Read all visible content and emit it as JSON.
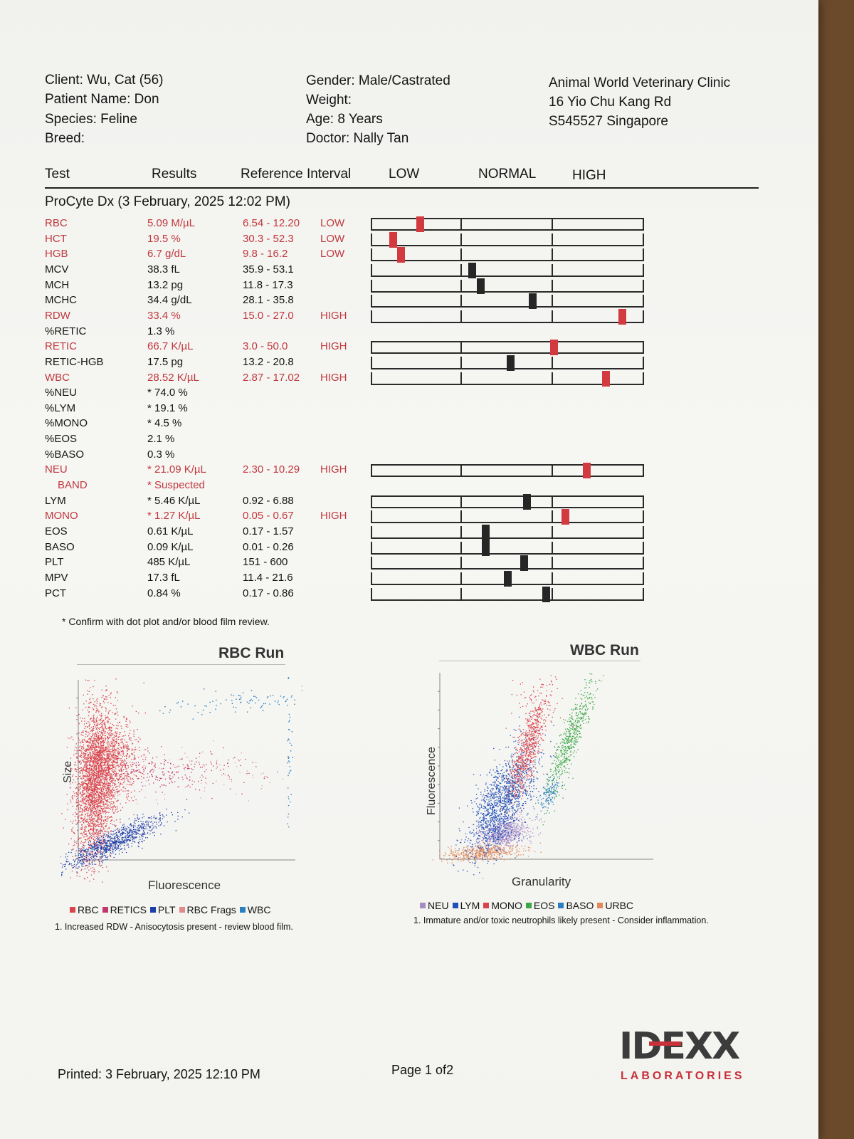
{
  "header": {
    "client": "Client: Wu, Cat (56)",
    "patient": "Patient Name: Don",
    "species": "Species: Feline",
    "breed": "Breed:",
    "gender": "Gender: Male/Castrated",
    "weight": "Weight:",
    "age": "Age: 8 Years",
    "doctor": "Doctor: Nally Tan",
    "clinic_name": "Animal World Veterinary Clinic",
    "clinic_address": "16 Yio Chu Kang Rd",
    "clinic_city": "S545527 Singapore"
  },
  "columns": {
    "test": "Test",
    "results": "Results",
    "reference": "Reference Interval",
    "low": "LOW",
    "normal": "NORMAL",
    "high": "HIGH"
  },
  "section_title": "ProCyte Dx (3 February, 2025 12:02 PM)",
  "rows": [
    {
      "test": "RBC",
      "result": "5.09 M/µL",
      "ref": "6.54 - 12.20",
      "flag": "LOW",
      "abnormal": true,
      "gauge": 0.18
    },
    {
      "test": "HCT",
      "result": "19.5 %",
      "ref": "30.3 - 52.3",
      "flag": "LOW",
      "abnormal": true,
      "gauge": 0.08
    },
    {
      "test": "HGB",
      "result": "6.7 g/dL",
      "ref": "9.8 - 16.2",
      "flag": "LOW",
      "abnormal": true,
      "gauge": 0.11
    },
    {
      "test": "MCV",
      "result": "38.3 fL",
      "ref": "35.9 - 53.1",
      "flag": "",
      "abnormal": false,
      "gauge": 0.37
    },
    {
      "test": "MCH",
      "result": "13.2 pg",
      "ref": "11.8 - 17.3",
      "flag": "",
      "abnormal": false,
      "gauge": 0.4
    },
    {
      "test": "MCHC",
      "result": "34.4 g/dL",
      "ref": "28.1 - 35.8",
      "flag": "",
      "abnormal": false,
      "gauge": 0.59
    },
    {
      "test": "RDW",
      "result": "33.4 %",
      "ref": "15.0 - 27.0",
      "flag": "HIGH",
      "abnormal": true,
      "gauge": 0.92
    },
    {
      "test": "%RETIC",
      "result": "1.3 %",
      "ref": "",
      "flag": "",
      "abnormal": false,
      "gauge": null
    },
    {
      "test": "RETIC",
      "result": "66.7 K/µL",
      "ref": "3.0 - 50.0",
      "flag": "HIGH",
      "abnormal": true,
      "gauge": 0.67
    },
    {
      "test": "RETIC-HGB",
      "result": "17.5 pg",
      "ref": "13.2 - 20.8",
      "flag": "",
      "abnormal": false,
      "gauge": 0.51
    },
    {
      "test": "WBC",
      "result": "28.52 K/µL",
      "ref": "2.87 - 17.02",
      "flag": "HIGH",
      "abnormal": true,
      "gauge": 0.86
    },
    {
      "test": "%NEU",
      "result": "* 74.0 %",
      "ref": "",
      "flag": "",
      "abnormal": false,
      "gauge": null
    },
    {
      "test": "%LYM",
      "result": "* 19.1 %",
      "ref": "",
      "flag": "",
      "abnormal": false,
      "gauge": null
    },
    {
      "test": "%MONO",
      "result": "* 4.5 %",
      "ref": "",
      "flag": "",
      "abnormal": false,
      "gauge": null
    },
    {
      "test": "%EOS",
      "result": "2.1 %",
      "ref": "",
      "flag": "",
      "abnormal": false,
      "gauge": null
    },
    {
      "test": "%BASO",
      "result": "0.3 %",
      "ref": "",
      "flag": "",
      "abnormal": false,
      "gauge": null
    },
    {
      "test": "NEU",
      "result": "* 21.09 K/µL",
      "ref": "2.30 - 10.29",
      "flag": "HIGH",
      "abnormal": true,
      "gauge": 0.79
    },
    {
      "test": "  BAND",
      "result": "* Suspected",
      "ref": "",
      "flag": "",
      "abnormal": true,
      "gauge": null
    },
    {
      "test": "LYM",
      "result": "* 5.46 K/µL",
      "ref": "0.92 - 6.88",
      "flag": "",
      "abnormal": false,
      "gauge": 0.57
    },
    {
      "test": "MONO",
      "result": "* 1.27 K/µL",
      "ref": "0.05 - 0.67",
      "flag": "HIGH",
      "abnormal": true,
      "gauge": 0.71
    },
    {
      "test": "EOS",
      "result": "0.61 K/µL",
      "ref": "0.17 - 1.57",
      "flag": "",
      "abnormal": false,
      "gauge": 0.42
    },
    {
      "test": "BASO",
      "result": "0.09 K/µL",
      "ref": "0.01 - 0.26",
      "flag": "",
      "abnormal": false,
      "gauge": 0.42
    },
    {
      "test": "PLT",
      "result": "485 K/µL",
      "ref": "151 - 600",
      "flag": "",
      "abnormal": false,
      "gauge": 0.56
    },
    {
      "test": "MPV",
      "result": "17.3 fL",
      "ref": "11.4 - 21.6",
      "flag": "",
      "abnormal": false,
      "gauge": 0.5
    },
    {
      "test": "PCT",
      "result": "0.84 %",
      "ref": "0.17 - 0.86",
      "flag": "",
      "abnormal": false,
      "gauge": 0.64
    }
  ],
  "confirm_note": "* Confirm with dot plot and/or blood film review.",
  "rbc_plot": {
    "title": "RBC Run",
    "xlabel": "Fluorescence",
    "ylabel": "Size",
    "legend": [
      {
        "label": "RBC",
        "color": "#d9444c"
      },
      {
        "label": "RETICS",
        "color": "#c2366e"
      },
      {
        "label": "PLT",
        "color": "#1f3fa8"
      },
      {
        "label": "RBC Frags",
        "color": "#e08a8a"
      },
      {
        "label": "WBC",
        "color": "#2b7fc1"
      }
    ],
    "note": "1. Increased RDW - Anisocytosis present - review blood film."
  },
  "wbc_plot": {
    "title": "WBC Run",
    "xlabel": "Granularity",
    "ylabel": "Fluorescence",
    "legend": [
      {
        "label": "NEU",
        "color": "#a88cc6"
      },
      {
        "label": "LYM",
        "color": "#1f4fb8"
      },
      {
        "label": "MONO",
        "color": "#d9444c"
      },
      {
        "label": "EOS",
        "color": "#3aa845"
      },
      {
        "label": "BASO",
        "color": "#2b7fc1"
      },
      {
        "label": "URBC",
        "color": "#e08a5a"
      }
    ],
    "note": "1. Immature and/or toxic neutrophils likely present - Consider inflammation."
  },
  "footer": {
    "printed": "Printed: 3 February, 2025 12:10 PM",
    "page": "Page 1 of2",
    "logo_word": "IDEXX",
    "logo_sub": "LABORATORIES"
  }
}
